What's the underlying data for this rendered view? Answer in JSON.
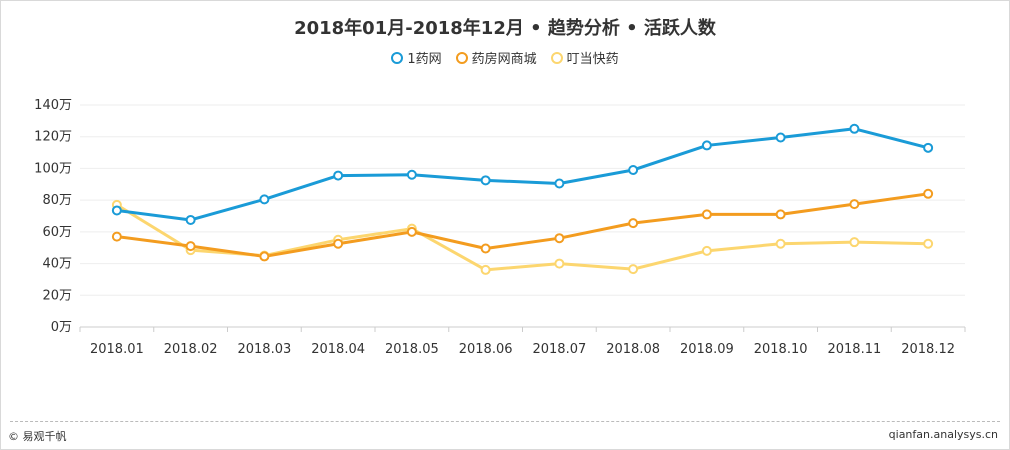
{
  "chart_data": {
    "type": "line",
    "title": "2018年01月-2018年12月 • 趋势分析 • 活跃人数",
    "categories": [
      "2018.01",
      "2018.02",
      "2018.03",
      "2018.04",
      "2018.05",
      "2018.06",
      "2018.07",
      "2018.08",
      "2018.09",
      "2018.10",
      "2018.11",
      "2018.12"
    ],
    "series": [
      {
        "name": "1药网",
        "color": "#1a9bd7",
        "values": [
          73.5,
          67.5,
          80.5,
          95.5,
          96,
          92.5,
          90.5,
          99,
          114.5,
          119.5,
          125,
          113
        ]
      },
      {
        "name": "药房网商城",
        "color": "#f39c1f",
        "values": [
          57,
          51,
          44.5,
          52.5,
          60,
          49.5,
          56,
          65.5,
          71,
          71,
          77.5,
          84
        ]
      },
      {
        "name": "叮当快药",
        "color": "#fcd66f",
        "values": [
          77,
          48.5,
          45,
          55,
          62,
          36,
          40,
          36.5,
          48,
          52.5,
          53.5,
          52.5
        ]
      }
    ],
    "ylim": [
      0,
      140
    ],
    "yticks": [
      0,
      20,
      40,
      60,
      80,
      100,
      120,
      140
    ],
    "ytick_labels": [
      "0万",
      "20万",
      "40万",
      "60万",
      "80万",
      "100万",
      "120万",
      "140万"
    ],
    "xlabel": "",
    "ylabel": "",
    "legend_position": "top-center",
    "grid": true
  },
  "footer": {
    "source_logo": "© 易观千帆",
    "url": "qianfan.analysys.cn"
  }
}
